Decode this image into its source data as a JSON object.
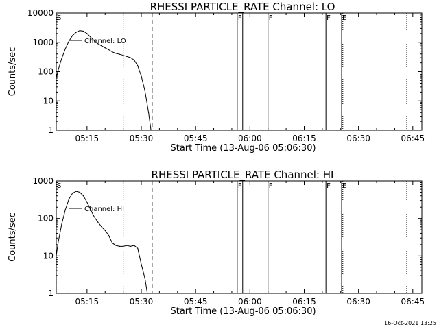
{
  "timestamp": "16-Oct-2021 13:25",
  "chart_data": [
    {
      "type": "line",
      "title": "RHESSI PARTICLE_RATE Channel: LO",
      "xlabel": "Start Time (13-Aug-06 05:06:30)",
      "ylabel": "Counts/sec",
      "yscale": "log",
      "ylim": [
        1,
        10000
      ],
      "xlim": [
        "05:06:30",
        "06:47:30"
      ],
      "x_ticks": [
        "05:15",
        "05:30",
        "05:45",
        "06:00",
        "06:15",
        "06:30",
        "06:45"
      ],
      "y_ticks": [
        "1",
        "10",
        "100",
        "1000",
        "10000"
      ],
      "legend": "top-left",
      "series": [
        {
          "name": "Channel: LO",
          "x": [
            "05:06:30",
            "05:07:00",
            "05:08:00",
            "05:09:00",
            "05:10:00",
            "05:11:00",
            "05:12:00",
            "05:13:00",
            "05:14:00",
            "05:15:00",
            "05:16:00",
            "05:17:00",
            "05:18:00",
            "05:19:00",
            "05:20:00",
            "05:21:00",
            "05:22:00",
            "05:23:00",
            "05:24:00",
            "05:25:00",
            "05:26:00",
            "05:27:00",
            "05:28:00",
            "05:29:00",
            "05:30:00",
            "05:31:00",
            "05:32:00",
            "05:32:40"
          ],
          "values": [
            60,
            110,
            280,
            600,
            1100,
            1700,
            2200,
            2500,
            2400,
            2000,
            1500,
            1150,
            900,
            760,
            650,
            560,
            470,
            420,
            390,
            360,
            330,
            300,
            250,
            160,
            70,
            22,
            4,
            1
          ]
        }
      ],
      "markers": [
        {
          "label": "S",
          "time": "05:06:30",
          "style": "none"
        },
        {
          "label": "",
          "time": "05:25:00",
          "style": "dotted"
        },
        {
          "label": "",
          "time": "05:33:00",
          "style": "dashed"
        },
        {
          "label": "F",
          "time": "05:56:30",
          "style": "solid"
        },
        {
          "label": "",
          "time": "05:58:00",
          "style": "solid"
        },
        {
          "label": "F",
          "time": "06:05:00",
          "style": "solid"
        },
        {
          "label": "F",
          "time": "06:21:00",
          "style": "solid"
        },
        {
          "label": "E",
          "time": "06:25:20",
          "style": "solid"
        },
        {
          "label": "",
          "time": "06:25:40",
          "style": "dotted"
        },
        {
          "label": "",
          "time": "06:43:20",
          "style": "dotted"
        }
      ]
    },
    {
      "type": "line",
      "title": "RHESSI PARTICLE_RATE Channel: HI",
      "xlabel": "Start Time (13-Aug-06 05:06:30)",
      "ylabel": "Counts/sec",
      "yscale": "log",
      "ylim": [
        1,
        1000
      ],
      "xlim": [
        "05:06:30",
        "06:47:30"
      ],
      "x_ticks": [
        "05:15",
        "05:30",
        "05:45",
        "06:00",
        "06:15",
        "06:30",
        "06:45"
      ],
      "y_ticks": [
        "1",
        "10",
        "100",
        "1000"
      ],
      "legend": "top-left",
      "series": [
        {
          "name": "Channel: HI",
          "x": [
            "05:06:30",
            "05:07:00",
            "05:08:00",
            "05:09:00",
            "05:10:00",
            "05:11:00",
            "05:12:00",
            "05:13:00",
            "05:14:00",
            "05:15:00",
            "05:16:00",
            "05:17:00",
            "05:18:00",
            "05:19:00",
            "05:20:00",
            "05:21:00",
            "05:22:00",
            "05:23:00",
            "05:24:00",
            "05:25:00",
            "05:26:00",
            "05:27:00",
            "05:28:00",
            "05:29:00",
            "05:30:00",
            "05:31:00",
            "05:31:40"
          ],
          "values": [
            10,
            22,
            70,
            170,
            330,
            470,
            530,
            500,
            400,
            270,
            170,
            110,
            80,
            60,
            48,
            35,
            22,
            19,
            18,
            18,
            19,
            18,
            19,
            16,
            6,
            2.5,
            1
          ]
        }
      ],
      "markers": [
        {
          "label": "S",
          "time": "05:06:30",
          "style": "none"
        },
        {
          "label": "",
          "time": "05:25:00",
          "style": "dotted"
        },
        {
          "label": "",
          "time": "05:33:00",
          "style": "dashed"
        },
        {
          "label": "F",
          "time": "05:56:30",
          "style": "solid"
        },
        {
          "label": "",
          "time": "05:58:00",
          "style": "solid"
        },
        {
          "label": "F",
          "time": "06:05:00",
          "style": "solid"
        },
        {
          "label": "F",
          "time": "06:21:00",
          "style": "solid"
        },
        {
          "label": "E",
          "time": "06:25:20",
          "style": "solid"
        },
        {
          "label": "",
          "time": "06:25:40",
          "style": "dotted"
        },
        {
          "label": "",
          "time": "06:43:20",
          "style": "dotted"
        }
      ]
    }
  ]
}
